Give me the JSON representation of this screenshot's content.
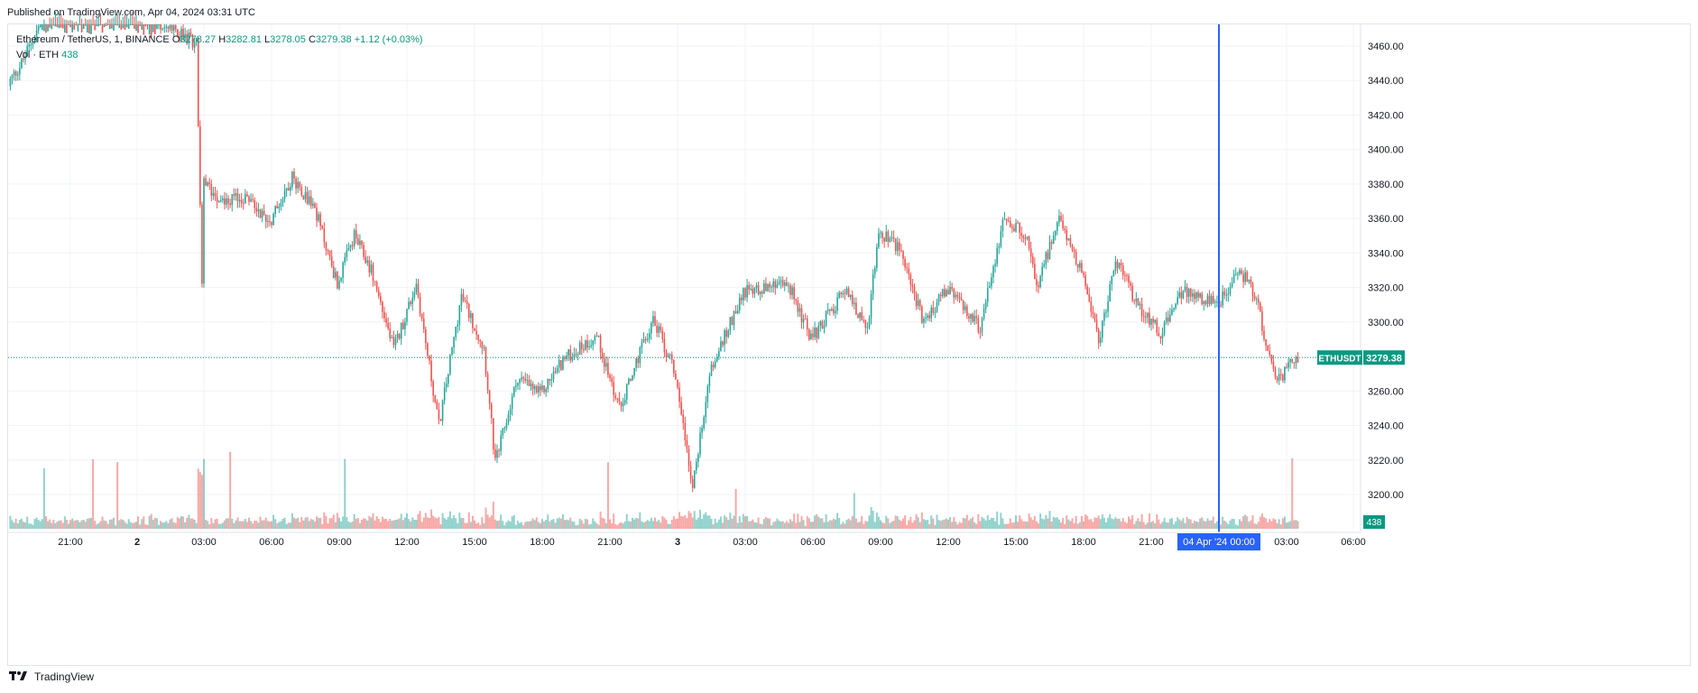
{
  "published": "Published on TradingView.com, Apr 04, 2024 03:31 UTC",
  "legend": {
    "symbol": "Ethereum / TetherUS, 1, BINANCE",
    "open_label": "O",
    "open": "3278.27",
    "high_label": "H",
    "high": "3282.81",
    "low_label": "L",
    "low": "3278.05",
    "close_label": "C",
    "close": "3279.38",
    "change": "+1.12 (+0.03%)",
    "vol_label": "Vol · ETH",
    "vol_value": "438"
  },
  "price_badge": {
    "symbol": "ETHUSDT",
    "value": "3279.38"
  },
  "volume_badge": "438",
  "crosshair_label": "04 Apr '24   00:00",
  "footer": {
    "brand": "TradingView"
  },
  "colors": {
    "up": "#26a69a",
    "down": "#ef5350",
    "badge": "#089981",
    "crosshair": "#2962ff",
    "grid": "#f0f3fa",
    "axis_text": "#131722"
  },
  "chart_data": {
    "type": "candlestick",
    "symbol": "ETHUSDT",
    "interval": "1",
    "exchange": "BINANCE",
    "x_tick_labels": [
      "21:00",
      "2",
      "03:00",
      "06:00",
      "09:00",
      "12:00",
      "15:00",
      "18:00",
      "21:00",
      "3",
      "03:00",
      "06:00",
      "09:00",
      "12:00",
      "15:00",
      "18:00",
      "21:00",
      "03:00",
      "06:00"
    ],
    "y_tick_labels": [
      "3200.00",
      "3220.00",
      "3240.00",
      "3260.00",
      "3280.00",
      "3300.00",
      "3320.00",
      "3340.00",
      "3360.00",
      "3380.00",
      "3400.00",
      "3420.00",
      "3440.00",
      "3460.00"
    ],
    "ylim": [
      3188,
      3472
    ],
    "last_price": 3279.38,
    "price_path": [
      {
        "t": "Apr 01 18:00",
        "p": 3430
      },
      {
        "t": "Apr 01 19:00",
        "p": 3450
      },
      {
        "t": "Apr 01 20:00",
        "p": 3478
      },
      {
        "t": "Apr 02 00:00",
        "p": 3480
      },
      {
        "t": "Apr 02 02:45",
        "p": 3462
      },
      {
        "t": "Apr 02 03:00",
        "p": 3320
      },
      {
        "t": "Apr 02 03:05",
        "p": 3380
      },
      {
        "t": "Apr 02 04:00",
        "p": 3370
      },
      {
        "t": "Apr 02 05:00",
        "p": 3372
      },
      {
        "t": "Apr 02 06:00",
        "p": 3358
      },
      {
        "t": "Apr 02 07:00",
        "p": 3384
      },
      {
        "t": "Apr 02 08:00",
        "p": 3366
      },
      {
        "t": "Apr 02 09:00",
        "p": 3322
      },
      {
        "t": "Apr 02 09:45",
        "p": 3350
      },
      {
        "t": "Apr 02 10:30",
        "p": 3330
      },
      {
        "t": "Apr 02 11:30",
        "p": 3284
      },
      {
        "t": "Apr 02 12:30",
        "p": 3322
      },
      {
        "t": "Apr 02 13:30",
        "p": 3240
      },
      {
        "t": "Apr 02 14:30",
        "p": 3315
      },
      {
        "t": "Apr 02 15:30",
        "p": 3285
      },
      {
        "t": "Apr 02 16:00",
        "p": 3218
      },
      {
        "t": "Apr 02 17:00",
        "p": 3268
      },
      {
        "t": "Apr 02 18:00",
        "p": 3258
      },
      {
        "t": "Apr 02 19:00",
        "p": 3278
      },
      {
        "t": "Apr 02 20:30",
        "p": 3292
      },
      {
        "t": "Apr 02 21:30",
        "p": 3250
      },
      {
        "t": "Apr 02 23:00",
        "p": 3302
      },
      {
        "t": "Apr 03 00:00",
        "p": 3270
      },
      {
        "t": "Apr 03 00:45",
        "p": 3204
      },
      {
        "t": "Apr 03 01:30",
        "p": 3270
      },
      {
        "t": "Apr 03 03:00",
        "p": 3318
      },
      {
        "t": "Apr 03 05:00",
        "p": 3322
      },
      {
        "t": "Apr 03 06:00",
        "p": 3290
      },
      {
        "t": "Apr 03 07:30",
        "p": 3318
      },
      {
        "t": "Apr 03 08:30",
        "p": 3296
      },
      {
        "t": "Apr 03 09:00",
        "p": 3352
      },
      {
        "t": "Apr 03 10:00",
        "p": 3342
      },
      {
        "t": "Apr 03 11:00",
        "p": 3298
      },
      {
        "t": "Apr 03 12:00",
        "p": 3320
      },
      {
        "t": "Apr 03 13:30",
        "p": 3296
      },
      {
        "t": "Apr 03 14:30",
        "p": 3358
      },
      {
        "t": "Apr 03 15:30",
        "p": 3352
      },
      {
        "t": "Apr 03 16:00",
        "p": 3320
      },
      {
        "t": "Apr 03 17:00",
        "p": 3360
      },
      {
        "t": "Apr 03 18:00",
        "p": 3330
      },
      {
        "t": "Apr 03 18:45",
        "p": 3288
      },
      {
        "t": "Apr 03 19:30",
        "p": 3336
      },
      {
        "t": "Apr 03 20:30",
        "p": 3310
      },
      {
        "t": "Apr 03 21:30",
        "p": 3294
      },
      {
        "t": "Apr 03 22:30",
        "p": 3318
      },
      {
        "t": "Apr 04 00:00",
        "p": 3310
      },
      {
        "t": "Apr 04 01:00",
        "p": 3330
      },
      {
        "t": "Apr 04 01:45",
        "p": 3315
      },
      {
        "t": "Apr 04 02:15",
        "p": 3280
      },
      {
        "t": "Apr 04 02:45",
        "p": 3266
      },
      {
        "t": "Apr 04 03:31",
        "p": 3279.38
      }
    ]
  }
}
